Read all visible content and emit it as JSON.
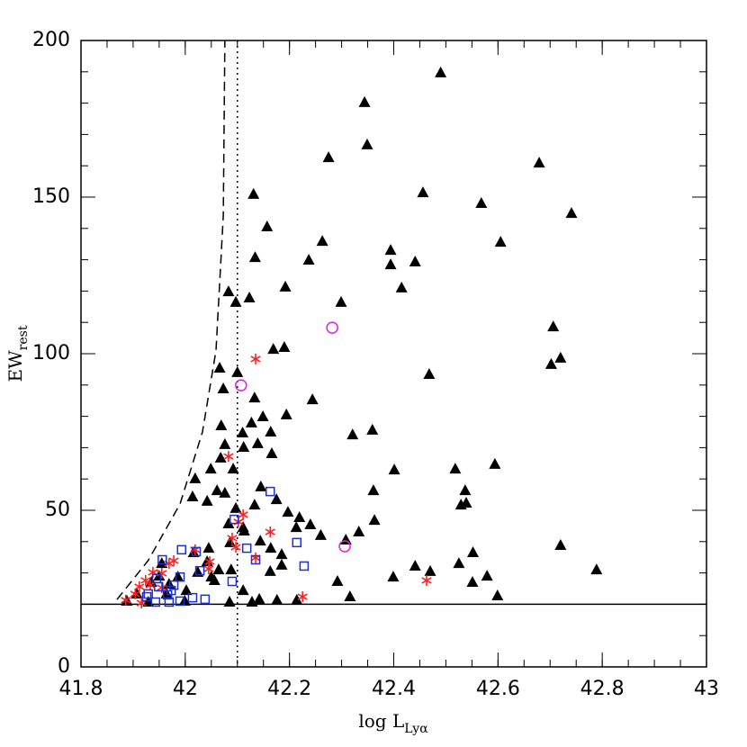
{
  "chart_data": {
    "type": "scatter",
    "xlabel": {
      "text": "log L",
      "sub": "Lyα"
    },
    "ylabel": {
      "text": "EW",
      "sub": "rest"
    },
    "xlim": [
      41.8,
      43
    ],
    "ylim": [
      0,
      200
    ],
    "xticks": [
      41.8,
      42,
      42.2,
      42.4,
      42.6,
      42.8,
      43
    ],
    "yticks": [
      0,
      50,
      100,
      150,
      200
    ],
    "minor_xstep": 0.05,
    "minor_ystep": 10,
    "hlines": [
      {
        "value": 20,
        "style": "solid",
        "color": "#000000"
      }
    ],
    "vlines": [
      {
        "value": 42.1,
        "style": "dotted",
        "color": "#000000"
      }
    ],
    "curves": [
      {
        "style": "dashed",
        "color": "#000000",
        "x": [
          41.869,
          41.929,
          41.99,
          42.033,
          42.059,
          42.073,
          42.076
        ],
        "values": [
          21.5,
          34,
          52,
          75,
          101,
          144,
          200
        ]
      }
    ],
    "series": [
      {
        "marker": "triangle",
        "color": "#000000",
        "x": [
          42.49,
          42.344,
          42.349,
          42.275,
          42.679,
          42.456,
          42.568,
          42.741,
          42.131,
          42.157,
          42.134,
          42.263,
          42.237,
          42.605,
          42.394,
          42.394,
          42.441,
          42.415,
          42.192,
          42.083,
          42.123,
          42.097,
          42.299,
          42.706,
          42.702,
          42.72,
          42.169,
          42.19,
          42.066,
          42.1,
          42.468,
          42.244,
          42.073,
          42.133,
          42.194,
          42.149,
          42.127,
          42.11,
          42.069,
          42.321,
          42.359,
          42.076,
          42.164,
          42.139,
          42.112,
          42.068,
          42.166,
          42.049,
          42.092,
          42.401,
          42.594,
          42.518,
          42.019,
          42.061,
          42.361,
          42.537,
          42.145,
          42.539,
          42.529,
          42.014,
          42.076,
          42.042,
          42.097,
          42.197,
          42.219,
          42.363,
          42.175,
          42.133,
          42.111,
          42.24,
          42.213,
          42.333,
          42.113,
          42.083,
          42.308,
          42.26,
          42.144,
          42.086,
          42.164,
          42.552,
          42.045,
          42.016,
          42.185,
          42.042,
          42.525,
          42.441,
          42.185,
          42.72,
          42.163,
          42.088,
          42.47,
          42.789,
          42.399,
          42.579,
          42.05,
          42.064,
          42.024,
          42.292,
          42.551,
          41.986,
          42.111,
          42.599,
          42.316,
          42.142,
          42.085,
          42.128,
          42.176,
          42.214,
          42.056,
          42.002,
          41.935,
          41.95,
          41.969,
          41.999,
          41.929,
          41.964,
          41.888,
          41.907,
          41.955
        ],
        "values": [
          189.7,
          180.2,
          166.7,
          162.6,
          160.9,
          151.4,
          148,
          144.8,
          150.9,
          140.5,
          130.7,
          135.9,
          129.9,
          135.6,
          133,
          128.4,
          129.3,
          121,
          121.3,
          119.8,
          117.8,
          116.4,
          116.4,
          108.6,
          96.6,
          98.6,
          101.4,
          102,
          95.4,
          94,
          93.4,
          85.3,
          88.8,
          85.9,
          80.5,
          79.9,
          77.9,
          74.7,
          77,
          74.1,
          75.6,
          71,
          75,
          71.3,
          70.1,
          66.7,
          68.1,
          63.2,
          63.2,
          62.9,
          64.7,
          63.2,
          60.1,
          56.3,
          56.3,
          56.3,
          57.5,
          52.3,
          51.7,
          54.3,
          55.5,
          52.9,
          50.6,
          49.4,
          47.7,
          46.8,
          53.4,
          51.7,
          44.5,
          45.4,
          44.5,
          43.1,
          43.4,
          45.7,
          40.5,
          42,
          40.2,
          39.7,
          37.9,
          36.5,
          37.9,
          36.5,
          35.9,
          33.6,
          33,
          32.2,
          32.5,
          38.8,
          30.5,
          31,
          30.5,
          31,
          28.7,
          29,
          28.7,
          31,
          30.2,
          27.3,
          27,
          28.7,
          24.4,
          22.7,
          22.4,
          21.6,
          20.7,
          20.7,
          21.3,
          21.3,
          27.6,
          24.4,
          27,
          29,
          26.4,
          21,
          20.7,
          23.3,
          21,
          23.3,
          33
        ]
      },
      {
        "marker": "asterisk",
        "color": "#ff2020",
        "x": [
          42.135,
          42.083,
          42.111,
          42.102,
          42.09,
          42.097,
          42.163,
          42.019,
          42.047,
          42.045,
          42.135,
          41.978,
          41.969,
          41.955,
          41.938,
          41.924,
          41.912,
          41.933,
          41.955,
          41.904,
          41.916,
          41.886,
          42.225,
          42.463
        ],
        "values": [
          98.3,
          67.2,
          48.6,
          46.3,
          41.1,
          38.2,
          43.1,
          37.4,
          33.6,
          31.3,
          34.8,
          33.9,
          33,
          29.9,
          30.2,
          27.6,
          25.6,
          26.1,
          25.3,
          23.3,
          20.4,
          21.3,
          22.4,
          27.6
        ]
      },
      {
        "marker": "square",
        "color": "#1c2fd0",
        "x": [
          41.956,
          41.993,
          42.021,
          42.028,
          42.094,
          42.163,
          42.214,
          42.118,
          42.135,
          42.228,
          42.09,
          41.945,
          41.99,
          41.978,
          41.949,
          41.929,
          41.966,
          42.014,
          42.038,
          41.99,
          41.943,
          41.926,
          41.969,
          41.973
        ],
        "values": [
          34.2,
          37.4,
          36.8,
          30.7,
          47.1,
          56,
          39.7,
          37.9,
          34.2,
          32.2,
          27.3,
          28.2,
          28.7,
          26.1,
          25.6,
          23.3,
          23,
          22.1,
          21.6,
          21,
          20.7,
          22.4,
          20.7,
          24.4
        ]
      },
      {
        "marker": "circle",
        "color": "#e020e0",
        "x": [
          42.282,
          42.107,
          42.306
        ],
        "values": [
          108.3,
          89.9,
          38.5
        ]
      }
    ]
  }
}
